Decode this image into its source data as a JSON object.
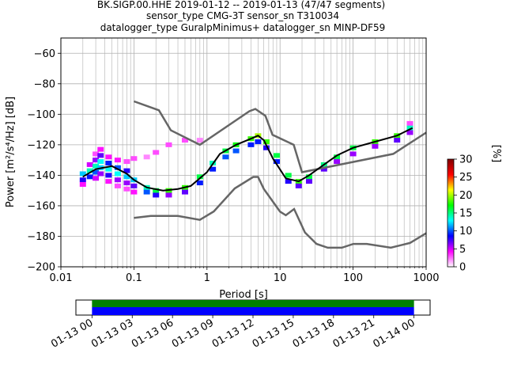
{
  "chart_data": {
    "type": "heatmap",
    "title": [
      "BK.SIGP.00.HHE   2019-01-12 -- 2019-01-13  (47/47 segments)",
      "sensor_type CMG-3T sensor_sn T310034",
      "datalogger_type GuralpMinimus+ datalogger_sn MINP-DF59"
    ],
    "xlabel": "Period [s]",
    "ylabel": "Power [m²/s⁴/Hz] [dB]",
    "x_scale": "log",
    "xlim": [
      0.01,
      1000
    ],
    "ylim": [
      -200,
      -50
    ],
    "x_ticks": [
      0.01,
      0.1,
      1,
      10,
      100,
      1000
    ],
    "x_tick_labels": [
      "0.01",
      "0.1",
      "1",
      "10",
      "100",
      "1000"
    ],
    "y_ticks": [
      -200,
      -180,
      -160,
      -140,
      -120,
      -100,
      -80,
      -60
    ],
    "y_tick_labels": [
      "−200",
      "−180",
      "−160",
      "−140",
      "−120",
      "−100",
      "−80",
      "−60"
    ],
    "grid": true,
    "colorbar": {
      "label": "[%]",
      "range": [
        0,
        30
      ],
      "ticks": [
        0,
        5,
        10,
        15,
        20,
        25,
        30
      ],
      "colors": [
        "#ffffff",
        "#ff00ff",
        "#0000ff",
        "#00ffff",
        "#00ff00",
        "#ffff00",
        "#ff0000",
        "#800000"
      ]
    },
    "mean_psd": {
      "name": "mean",
      "x": [
        0.02,
        0.03,
        0.05,
        0.08,
        0.1,
        0.15,
        0.25,
        0.4,
        0.6,
        1,
        1.5,
        2.5,
        4,
        5,
        6,
        8,
        12,
        18,
        25,
        40,
        60,
        100,
        200,
        400,
        650
      ],
      "y": [
        -141,
        -136,
        -134,
        -139,
        -143,
        -148,
        -150,
        -149,
        -147,
        -138,
        -126,
        -120,
        -116,
        -114,
        -117,
        -129,
        -142,
        -144,
        -140,
        -133,
        -127,
        -122,
        -118,
        -114,
        -109
      ]
    },
    "distribution": {
      "cells": [
        [
          0.02,
          -139,
          12
        ],
        [
          0.02,
          -143,
          8
        ],
        [
          0.02,
          -146,
          4
        ],
        [
          0.025,
          -137,
          14
        ],
        [
          0.025,
          -133,
          5
        ],
        [
          0.025,
          -141,
          9
        ],
        [
          0.03,
          -126,
          3
        ],
        [
          0.03,
          -130,
          6
        ],
        [
          0.03,
          -134,
          14
        ],
        [
          0.03,
          -138,
          10
        ],
        [
          0.03,
          -142,
          5
        ],
        [
          0.035,
          -123,
          4
        ],
        [
          0.035,
          -127,
          7
        ],
        [
          0.035,
          -131,
          13
        ],
        [
          0.035,
          -135,
          12
        ],
        [
          0.035,
          -139,
          6
        ],
        [
          0.045,
          -128,
          4
        ],
        [
          0.045,
          -132,
          9
        ],
        [
          0.045,
          -136,
          13
        ],
        [
          0.045,
          -140,
          8
        ],
        [
          0.045,
          -144,
          4
        ],
        [
          0.06,
          -130,
          4
        ],
        [
          0.06,
          -135,
          10
        ],
        [
          0.06,
          -139,
          13
        ],
        [
          0.06,
          -143,
          6
        ],
        [
          0.06,
          -147,
          3
        ],
        [
          0.08,
          -131,
          3
        ],
        [
          0.08,
          -137,
          8
        ],
        [
          0.08,
          -141,
          12
        ],
        [
          0.08,
          -145,
          6
        ],
        [
          0.08,
          -149,
          3
        ],
        [
          0.1,
          -129,
          3
        ],
        [
          0.1,
          -143,
          12
        ],
        [
          0.1,
          -147,
          7
        ],
        [
          0.1,
          -151,
          4
        ],
        [
          0.15,
          -128,
          2
        ],
        [
          0.15,
          -148,
          14
        ],
        [
          0.15,
          -151,
          10
        ],
        [
          0.2,
          -125,
          3
        ],
        [
          0.2,
          -150,
          16
        ],
        [
          0.2,
          -153,
          8
        ],
        [
          0.3,
          -120,
          3
        ],
        [
          0.3,
          -150,
          18
        ],
        [
          0.3,
          -153,
          6
        ],
        [
          0.5,
          -117,
          3
        ],
        [
          0.5,
          -148,
          18
        ],
        [
          0.5,
          -151,
          7
        ],
        [
          0.8,
          -117,
          2
        ],
        [
          0.8,
          -141,
          16
        ],
        [
          0.8,
          -145,
          9
        ],
        [
          1.2,
          -132,
          14
        ],
        [
          1.2,
          -136,
          9
        ],
        [
          1.8,
          -124,
          16
        ],
        [
          1.8,
          -128,
          10
        ],
        [
          2.5,
          -120,
          17
        ],
        [
          2.5,
          -124,
          10
        ],
        [
          4,
          -116,
          18
        ],
        [
          4,
          -120,
          9
        ],
        [
          5,
          -114,
          20
        ],
        [
          5,
          -118,
          9
        ],
        [
          6.5,
          -118,
          18
        ],
        [
          6.5,
          -122,
          8
        ],
        [
          9,
          -127,
          16
        ],
        [
          9,
          -131,
          9
        ],
        [
          13,
          -140,
          16
        ],
        [
          13,
          -144,
          8
        ],
        [
          18,
          -144,
          18
        ],
        [
          18,
          -147,
          7
        ],
        [
          25,
          -141,
          16
        ],
        [
          25,
          -144,
          7
        ],
        [
          40,
          -133,
          15
        ],
        [
          40,
          -136,
          7
        ],
        [
          60,
          -128,
          16
        ],
        [
          60,
          -131,
          6
        ],
        [
          100,
          -122,
          16
        ],
        [
          100,
          -126,
          6
        ],
        [
          200,
          -118,
          18
        ],
        [
          200,
          -121,
          6
        ],
        [
          400,
          -114,
          18
        ],
        [
          400,
          -117,
          7
        ],
        [
          600,
          -106,
          3
        ],
        [
          600,
          -109,
          14
        ],
        [
          600,
          -112,
          6
        ]
      ]
    },
    "noise_models": [
      {
        "name": "NHNM",
        "x": [
          0.1,
          0.22,
          0.32,
          0.8,
          3.8,
          4.6,
          6.3,
          7.9,
          15.4,
          20,
          354.8,
          1000
        ],
        "y": [
          -91.5,
          -97.4,
          -110.5,
          -120,
          -98,
          -96.5,
          -101,
          -113.5,
          -120,
          -138,
          -126,
          -112
        ]
      },
      {
        "name": "NLNM",
        "x": [
          0.1,
          0.17,
          0.4,
          0.8,
          1.24,
          2.4,
          4.3,
          5,
          6,
          10,
          12,
          15.6,
          21.9,
          31.6,
          45,
          70,
          101,
          154,
          328,
          600,
          1000
        ],
        "y": [
          -168,
          -166.7,
          -166.7,
          -169.2,
          -163.7,
          -148.6,
          -141.1,
          -141.1,
          -149,
          -163.8,
          -166.2,
          -162.1,
          -177.5,
          -185,
          -187.5,
          -187.5,
          -185,
          -185,
          -187.5,
          -184.4,
          -178
        ]
      }
    ]
  },
  "timeline": {
    "tick_labels": [
      "01-13 00",
      "01-13 03",
      "01-13 06",
      "01-13 09",
      "01-13 12",
      "01-13 15",
      "01-13 18",
      "01-13 21",
      "01-14 00"
    ],
    "start_hours": -1.2,
    "end_hours": 25.2,
    "data_start_hours": 0,
    "data_end_hours": 24,
    "colors": {
      "top": "#008000",
      "bottom": "#0000ff"
    }
  }
}
